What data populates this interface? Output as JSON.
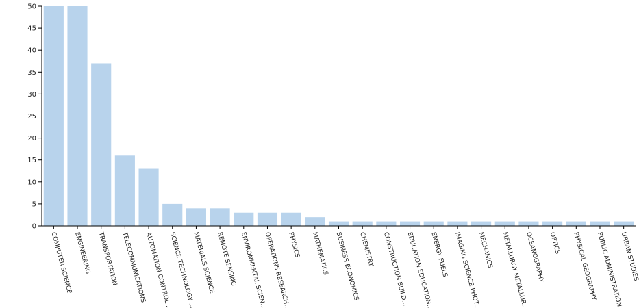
{
  "chart_data": {
    "type": "bar",
    "categories": [
      "COMPUTER SCIENCE",
      "ENGINEERING",
      "TRANSPORTATION",
      "TELECOMMUNICATIONS",
      "AUTOMATION CONTROL ...",
      "SCIENCE TECHNOLOGY ...",
      "MATERIALS SCIENCE",
      "REMOTE SENSING",
      "ENVIRONMENTAL SCIEN...",
      "OPERATIONS RESEARCH...",
      "PHYSICS",
      "MATHEMATICS",
      "BUSINESS ECONOMICS",
      "CHEMISTRY",
      "CONSTRUCTION BUILD...",
      "EDUCATION EDUCATION...",
      "ENERGY FUELS",
      "IMAGING SCIENCE PHOT...",
      "MECHANICS",
      "METALLURGY METALLUR...",
      "OCEANOGRAPHY",
      "OPTICS",
      "PHYSICAL GEOGRAPHY",
      "PUBLIC ADMINISTRATION",
      "URBAN STUDIES"
    ],
    "values": [
      50,
      50,
      37,
      16,
      13,
      5,
      4,
      4,
      3,
      3,
      3,
      2,
      1,
      1,
      1,
      1,
      1,
      1,
      1,
      1,
      1,
      1,
      1,
      1,
      1
    ],
    "color": "#b8d3ec",
    "ylim": [
      0,
      50
    ],
    "yticks": [
      0,
      5,
      10,
      15,
      20,
      25,
      30,
      35,
      40,
      45,
      50
    ]
  }
}
